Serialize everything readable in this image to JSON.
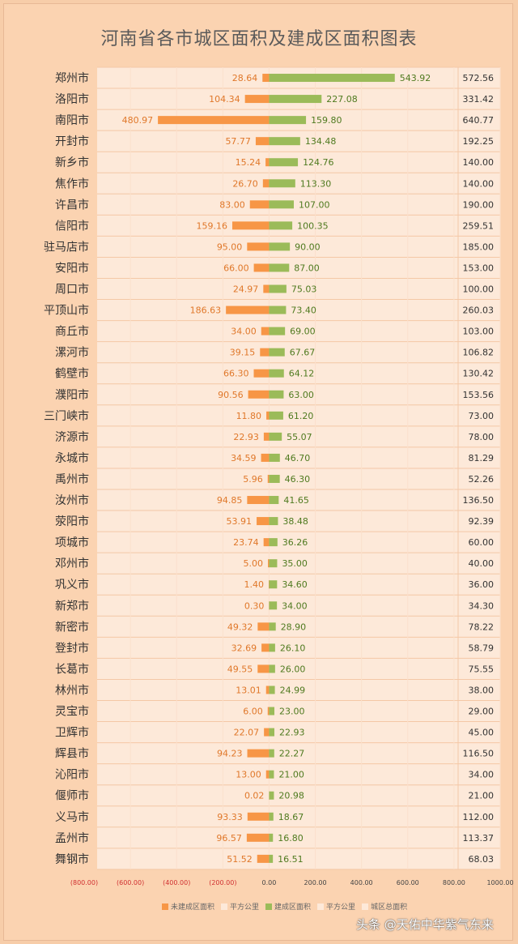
{
  "title": "河南省各市城区面积及建成区面积图表",
  "watermark": "头条 @天佑中华紫气东来",
  "legend": [
    {
      "label": "未建成区面积",
      "color": "#f79646"
    },
    {
      "label": "平方公里",
      "color": "#fde9d9"
    },
    {
      "label": "建成区面积",
      "color": "#9bbb59"
    },
    {
      "label": "平方公里",
      "color": "#fde9d9"
    },
    {
      "label": "城区总面积",
      "color": "#fde9d9"
    }
  ],
  "chart_data": {
    "type": "bar",
    "orientation": "horizontal",
    "title": "河南省各市城区面积及建成区面积图表",
    "xlim": [
      -800,
      1000
    ],
    "x_ticks": [
      "(800.00)",
      "(600.00)",
      "(400.00)",
      "(200.00)",
      "0.00",
      "200.00",
      "400.00",
      "600.00",
      "800.00",
      "1000.00"
    ],
    "x_tick_values": [
      -800,
      -600,
      -400,
      -200,
      0,
      200,
      400,
      600,
      800,
      1000
    ],
    "categories": [
      "郑州市",
      "洛阳市",
      "南阳市",
      "开封市",
      "新乡市",
      "焦作市",
      "许昌市",
      "信阳市",
      "驻马店市",
      "安阳市",
      "周口市",
      "平顶山市",
      "商丘市",
      "漯河市",
      "鹤壁市",
      "濮阳市",
      "三门峡市",
      "济源市",
      "永城市",
      "禹州市",
      "汝州市",
      "荥阳市",
      "项城市",
      "邓州市",
      "巩义市",
      "新郑市",
      "新密市",
      "登封市",
      "长葛市",
      "林州市",
      "灵宝市",
      "卫辉市",
      "辉县市",
      "沁阳市",
      "偃师市",
      "义马市",
      "孟州市",
      "舞钢市"
    ],
    "series": [
      {
        "name": "未建成区面积",
        "color": "#f79646",
        "values": [
          "28.64",
          "104.34",
          "480.97",
          "57.77",
          "15.24",
          "26.70",
          "83.00",
          "159.16",
          "95.00",
          "66.00",
          "24.97",
          "186.63",
          "34.00",
          "39.15",
          "66.30",
          "90.56",
          "11.80",
          "22.93",
          "34.59",
          "5.96",
          "94.85",
          "53.91",
          "23.74",
          "5.00",
          "1.40",
          "0.30",
          "49.32",
          "32.69",
          "49.55",
          "13.01",
          "6.00",
          "22.07",
          "94.23",
          "13.00",
          "0.02",
          "93.33",
          "96.57",
          "51.52"
        ]
      },
      {
        "name": "建成区面积",
        "color": "#9bbb59",
        "values": [
          "543.92",
          "227.08",
          "159.80",
          "134.48",
          "124.76",
          "113.30",
          "107.00",
          "100.35",
          "90.00",
          "87.00",
          "75.03",
          "73.40",
          "69.00",
          "67.67",
          "64.12",
          "63.00",
          "61.20",
          "55.07",
          "46.70",
          "46.30",
          "41.65",
          "38.48",
          "36.26",
          "35.00",
          "34.60",
          "34.00",
          "28.90",
          "26.10",
          "26.00",
          "24.99",
          "23.00",
          "22.93",
          "22.27",
          "21.00",
          "20.98",
          "18.67",
          "16.80",
          "16.51"
        ]
      },
      {
        "name": "城区总面积",
        "values": [
          "572.56",
          "331.42",
          "640.77",
          "192.25",
          "140.00",
          "140.00",
          "190.00",
          "259.51",
          "185.00",
          "153.00",
          "100.00",
          "260.03",
          "103.00",
          "106.82",
          "130.42",
          "153.56",
          "73.00",
          "78.00",
          "81.29",
          "52.26",
          "136.50",
          "92.39",
          "60.00",
          "40.00",
          "36.00",
          "34.30",
          "78.22",
          "58.79",
          "75.55",
          "38.00",
          "29.00",
          "45.00",
          "116.50",
          "34.00",
          "21.00",
          "112.00",
          "113.37",
          "68.03"
        ]
      }
    ]
  }
}
